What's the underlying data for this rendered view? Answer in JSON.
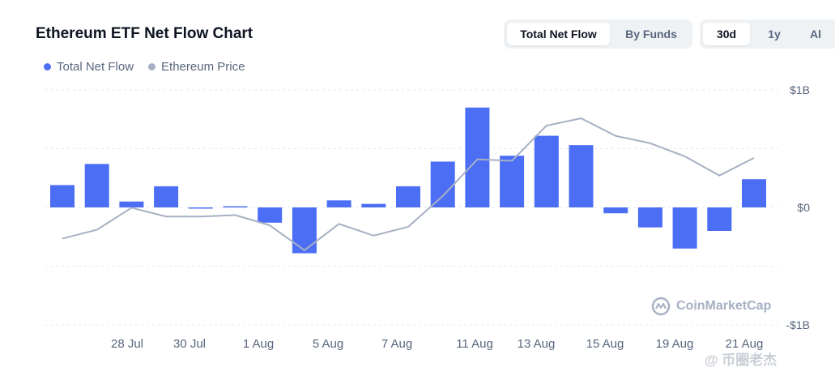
{
  "header": {
    "title": "Ethereum ETF Net Flow Chart",
    "view_tabs": [
      "Total Net Flow",
      "By Funds"
    ],
    "range_tabs": [
      "30d",
      "1y",
      "Al"
    ]
  },
  "watermark": {
    "brand": "CoinMarketCap",
    "secondary": "@ 币圈老杰"
  },
  "colors": {
    "flow": "#4b6ef5",
    "price": "#a6b0c3",
    "grid": "#e5e8ed"
  },
  "chart_data": {
    "type": "bar",
    "legend": [
      "Total Net Flow",
      "Ethereum Price"
    ],
    "x_tick_labels": [
      "28 Jul",
      "30 Jul",
      "1 Aug",
      "5 Aug",
      "7 Aug",
      "11 Aug",
      "13 Aug",
      "15 Aug",
      "19 Aug",
      "21 Aug"
    ],
    "y_tick_labels": [
      "$1B",
      "$0",
      "-$1B"
    ],
    "ylim": [
      -1,
      1
    ],
    "legend_position": "top-left",
    "grid": true,
    "series": [
      {
        "name": "Total Net Flow",
        "type": "bar",
        "values": [
          0.19,
          0.37,
          0.05,
          0.18,
          -0.01,
          0.01,
          -0.13,
          -0.39,
          0.06,
          0.03,
          0.18,
          0.39,
          0.85,
          0.44,
          0.61,
          0.53,
          -0.05,
          -0.17,
          -0.35,
          -0.2,
          0.24
        ]
      },
      {
        "name": "Ethereum Price",
        "type": "line",
        "relative_values": [
          0.18,
          0.24,
          0.39,
          0.33,
          0.33,
          0.34,
          0.27,
          0.1,
          0.28,
          0.2,
          0.26,
          0.47,
          0.72,
          0.71,
          0.95,
          1.0,
          0.88,
          0.83,
          0.74,
          0.61,
          0.73
        ]
      }
    ]
  }
}
